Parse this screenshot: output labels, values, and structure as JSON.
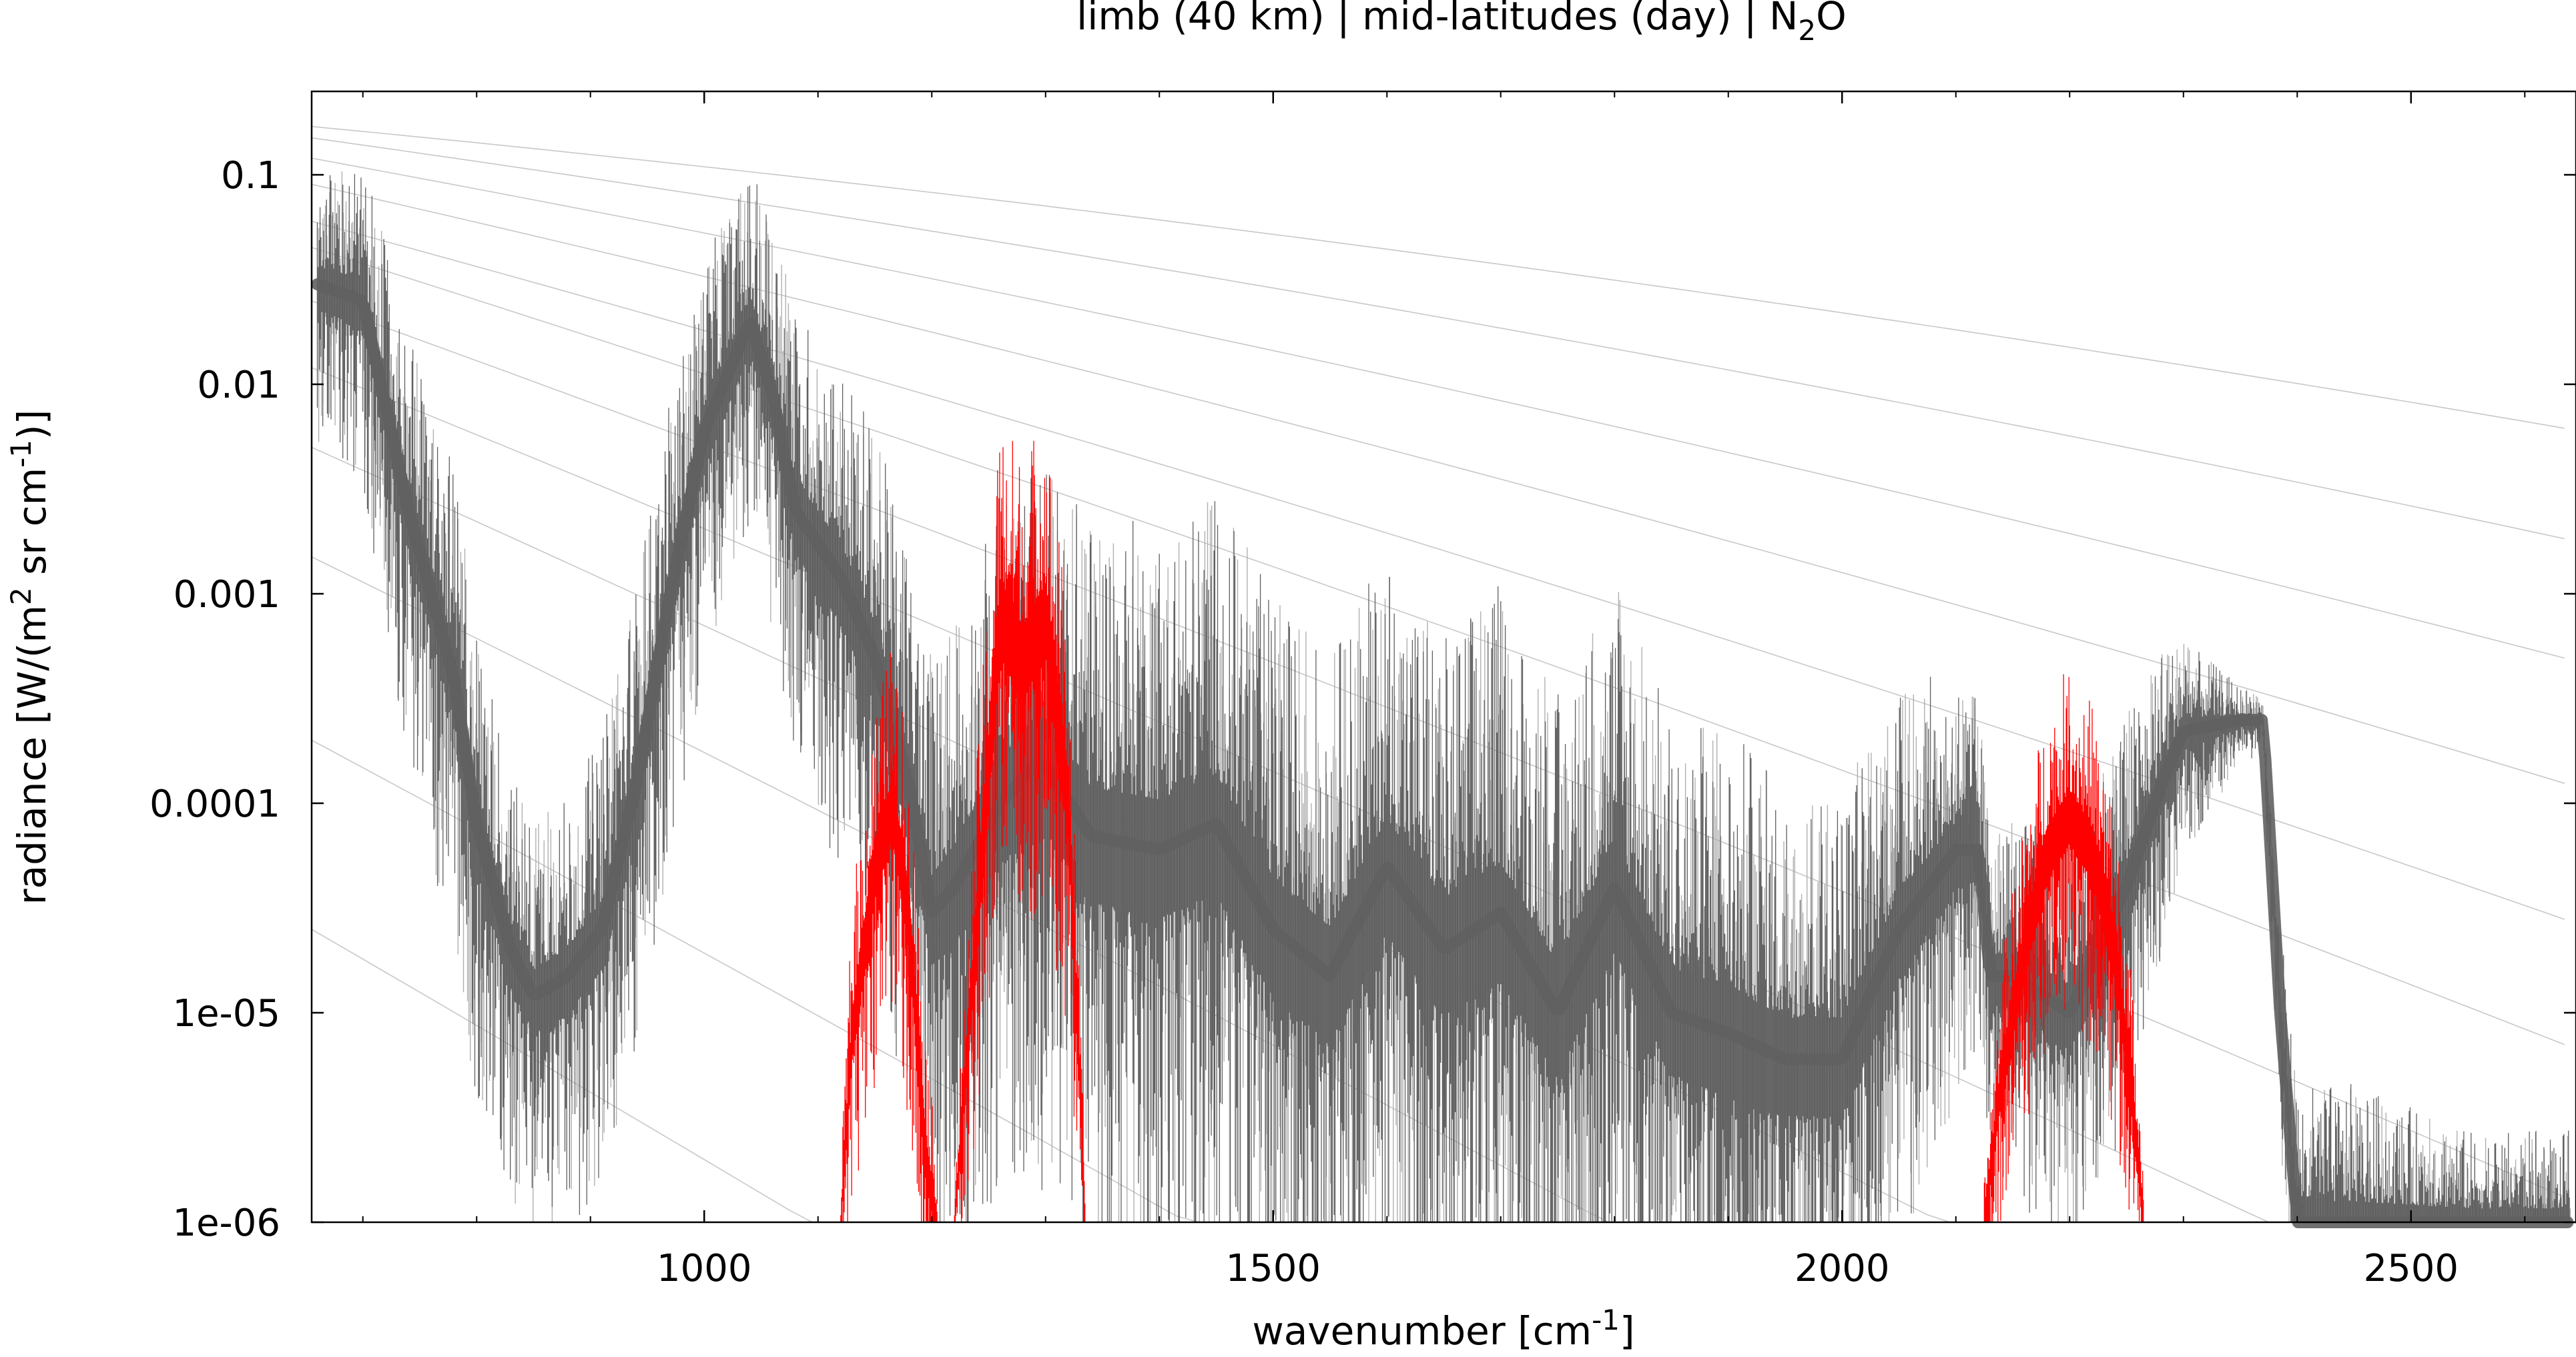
{
  "chart_data": {
    "type": "line",
    "title": {
      "prefix": "limb (40 km) | mid-latitudes (day) | N",
      "sub": "2",
      "suffix": "O"
    },
    "xlabel": {
      "prefix": "wavenumber [cm",
      "sup": "-1",
      "suffix": "]"
    },
    "ylabel": {
      "p1": "radiance [W/(m",
      "s1": "2",
      "p2": " sr cm",
      "s2": "-1",
      "p3": ")]"
    },
    "xlim": [
      655,
      2645
    ],
    "ylim": [
      1e-06,
      0.25
    ],
    "yscale": "log",
    "xticks": [
      1000,
      1500,
      2000,
      2500
    ],
    "xtick_labels": [
      "1000",
      "1500",
      "2000",
      "2500"
    ],
    "yticks": [
      0.1,
      0.01,
      0.001,
      0.0001,
      1e-05,
      1e-06
    ],
    "ytick_labels": [
      "0.1",
      "0.01",
      "0.001",
      "0.0001",
      "1e-05",
      "1e-06"
    ],
    "colors": {
      "total": "#606060",
      "total_light": "#b0b0b0",
      "n2o": "#ff0000",
      "reference": "#c8c8c8"
    },
    "series": [
      {
        "key": "total",
        "x": [
          660,
          700,
          740,
          780,
          800,
          830,
          850,
          880,
          910,
          940,
          970,
          1000,
          1040,
          1060,
          1080,
          1120,
          1150,
          1180,
          1200,
          1220,
          1260,
          1290,
          1300,
          1340,
          1400,
          1450,
          1500,
          1550,
          1600,
          1650,
          1700,
          1750,
          1800,
          1850,
          1900,
          1950,
          2000,
          2050,
          2100,
          2120,
          2130,
          2150,
          2200,
          2250,
          2280,
          2300,
          2350,
          2370,
          2385,
          2400,
          2450,
          2500,
          2550,
          2600,
          2640
        ],
        "y": [
          0.03,
          0.025,
          0.0025,
          0.0004,
          8e-05,
          2e-05,
          1.2e-05,
          1.5e-05,
          2.5e-05,
          0.00012,
          0.001,
          0.006,
          0.02,
          0.009,
          0.0025,
          0.0012,
          0.0005,
          0.00012,
          3e-05,
          4e-05,
          0.0001,
          0.00015,
          0.00015,
          7e-05,
          6e-05,
          8e-05,
          2.5e-05,
          1.5e-05,
          5e-05,
          2e-05,
          3e-05,
          1e-05,
          4e-05,
          1e-05,
          8e-06,
          6e-06,
          6e-06,
          2.5e-05,
          6e-05,
          6e-05,
          1.5e-05,
          1.5e-05,
          1e-05,
          4e-05,
          0.00012,
          0.00022,
          0.00025,
          0.00025,
          1e-05,
          1e-06,
          1e-06,
          1e-06,
          1e-06,
          1e-06,
          1e-06
        ],
        "spread": [
          1.0,
          1.2,
          1.6,
          1.8,
          1.8,
          1.6,
          1.5,
          1.6,
          1.7,
          1.8,
          1.7,
          1.5,
          1.3,
          1.6,
          1.8,
          1.9,
          2.0,
          2.1,
          2.2,
          2.4,
          2.6,
          2.7,
          2.7,
          2.8,
          2.9,
          2.9,
          2.9,
          2.8,
          2.8,
          2.8,
          2.9,
          2.8,
          2.7,
          2.6,
          2.7,
          2.4,
          2.4,
          2.1,
          1.6,
          1.3,
          1.2,
          1.4,
          1.6,
          1.5,
          1.2,
          0.8,
          0.3,
          0.2,
          0.8,
          1.2,
          1.2,
          1.0,
          0.8,
          0.8,
          0.8
        ]
      },
      {
        "key": "n2o",
        "x": [
          1120,
          1130,
          1150,
          1165,
          1180,
          1195,
          1205,
          1220,
          1240,
          1260,
          1280,
          1300,
          1320,
          1335,
          2125,
          2140,
          2160,
          2180,
          2200,
          2220,
          2240,
          2255,
          2265
        ],
        "y": [
          1e-06,
          8e-06,
          5e-05,
          0.0001,
          3e-05,
          2e-06,
          1e-06,
          1e-06,
          3e-05,
          0.0008,
          0.0005,
          0.0008,
          0.0001,
          1e-06,
          1e-06,
          5e-06,
          2e-05,
          6e-05,
          9e-05,
          6e-05,
          2e-05,
          4e-06,
          1e-06
        ],
        "spread": [
          0.4,
          1.2,
          1.4,
          1.4,
          1.4,
          1.2,
          0.4,
          0.4,
          1.4,
          1.8,
          1.8,
          1.8,
          1.6,
          0.4,
          0.4,
          1.0,
          1.2,
          1.3,
          1.3,
          1.3,
          1.2,
          1.0,
          0.4
        ]
      }
    ],
    "reference_curves_at_xmin": [
      0.17,
      0.15,
      0.12,
      0.09,
      0.06,
      0.045,
      0.025,
      0.012,
      0.005,
      0.0015,
      0.0002,
      2.5e-05
    ]
  }
}
